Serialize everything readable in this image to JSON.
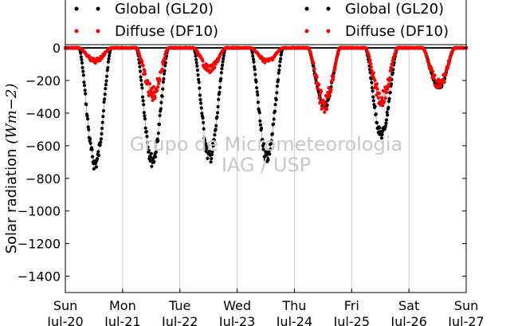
{
  "chart_data": {
    "type": "scatter",
    "ylabel": "Solar radiation",
    "ylabel_unit": "(Wm−2)",
    "ylim": [
      -1500,
      20
    ],
    "yticks": [
      0,
      -200,
      -400,
      -600,
      -800,
      -1000,
      -1200,
      -1400
    ],
    "x_range_days": [
      0,
      7
    ],
    "x_ticks": [
      {
        "day": "Sun",
        "date": "Jul-20"
      },
      {
        "day": "Mon",
        "date": "Jul-21"
      },
      {
        "day": "Tue",
        "date": "Jul-22"
      },
      {
        "day": "Wed",
        "date": "Jul-23"
      },
      {
        "day": "Thu",
        "date": "Jul-24"
      },
      {
        "day": "Fri",
        "date": "Jul-25"
      },
      {
        "day": "Sat",
        "date": "Jul-26"
      },
      {
        "day": "Sun",
        "date": "Jul-27"
      }
    ],
    "grid": "vertical",
    "zero_line": true,
    "legend": {
      "placement": "top",
      "columns": [
        [
          {
            "label": "Global (GL20)",
            "color": "#000000"
          },
          {
            "label": "Diffuse (DF10)",
            "color": "#ff0000"
          }
        ],
        [
          {
            "label": "Global (GL20)",
            "color": "#000000"
          },
          {
            "label": "Diffuse (DF10)",
            "color": "#ff0000"
          }
        ]
      ]
    },
    "series": [
      {
        "name": "Global (GL20)",
        "color": "#000000",
        "daily_peaks": [
          {
            "day": 0,
            "peak_time": 0.52,
            "min_value": -710
          },
          {
            "day": 1,
            "peak_time": 0.52,
            "min_value": -690
          },
          {
            "day": 2,
            "peak_time": 0.52,
            "min_value": -670
          },
          {
            "day": 3,
            "peak_time": 0.52,
            "min_value": -665
          },
          {
            "day": 4,
            "peak_time": 0.52,
            "min_value": -360
          },
          {
            "day": 5,
            "peak_time": 0.52,
            "min_value": -530
          },
          {
            "day": 6,
            "peak_time": 0.52,
            "min_value": -240
          }
        ]
      },
      {
        "name": "Diffuse (DF10)",
        "color": "#ff0000",
        "daily_peaks": [
          {
            "day": 0,
            "peak_time": 0.52,
            "min_value": -80
          },
          {
            "day": 1,
            "peak_time": 0.52,
            "min_value": -280
          },
          {
            "day": 2,
            "peak_time": 0.52,
            "min_value": -130
          },
          {
            "day": 3,
            "peak_time": 0.52,
            "min_value": -80
          },
          {
            "day": 4,
            "peak_time": 0.52,
            "min_value": -340
          },
          {
            "day": 5,
            "peak_time": 0.52,
            "min_value": -310
          },
          {
            "day": 6,
            "peak_time": 0.52,
            "min_value": -230
          }
        ]
      }
    ]
  },
  "watermark": {
    "line1": "Grupo de Micrometeorologia",
    "line2": "IAG / USP"
  }
}
